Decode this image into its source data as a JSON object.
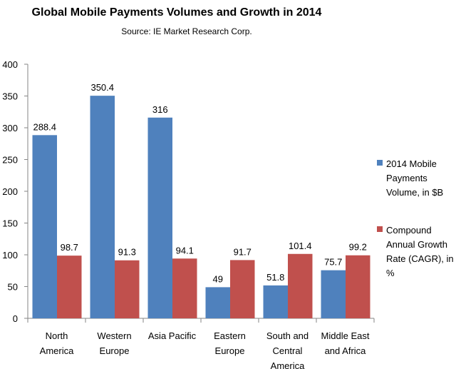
{
  "chart_data": {
    "type": "bar",
    "title": "Global Mobile Payments Volumes and Growth in 2014",
    "subtitle": "Source: IE Market Research Corp.",
    "xlabel": "",
    "ylabel": "",
    "categories": [
      [
        "North",
        "America"
      ],
      [
        "Western",
        "Europe"
      ],
      [
        "Asia Pacific"
      ],
      [
        "Eastern",
        "Europe"
      ],
      [
        "South and",
        "Central",
        "America"
      ],
      [
        "Middle East",
        "and Africa"
      ]
    ],
    "series": [
      {
        "name": "2014 Mobile Payments Volume, in $B",
        "legend_lines": [
          "2014 Mobile",
          "Payments",
          "Volume, in $B"
        ],
        "color": "#4F81BD",
        "values": [
          288.4,
          350.4,
          316,
          49,
          51.8,
          75.7
        ],
        "labels": [
          "288.4",
          "350.4",
          "316",
          "49",
          "51.8",
          "75.7"
        ]
      },
      {
        "name": "Compound Annual Growth Rate (CAGR), in %",
        "legend_lines": [
          "Compound",
          "Annual Growth",
          "Rate (CAGR), in",
          "%"
        ],
        "color": "#C0504D",
        "values": [
          98.7,
          91.3,
          94.1,
          91.7,
          101.4,
          99.2
        ],
        "labels": [
          "98.7",
          "91.3",
          "94.1",
          "91.7",
          "101.4",
          "99.2"
        ]
      }
    ],
    "ylim": [
      0,
      400
    ],
    "yticks": [
      0,
      50,
      100,
      150,
      200,
      250,
      300,
      350,
      400
    ],
    "grid": false,
    "legend_position": "right"
  }
}
